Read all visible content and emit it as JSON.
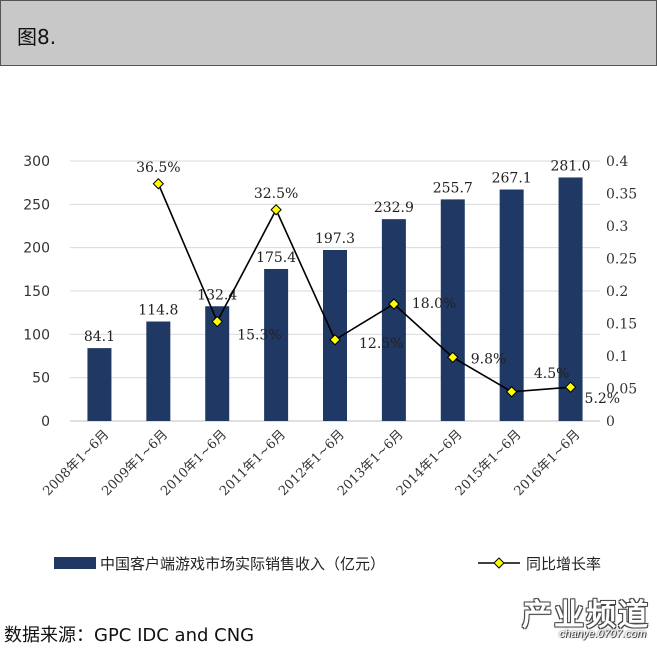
{
  "header": {
    "title": "图8."
  },
  "chart_data": {
    "type": "bar",
    "categories": [
      "2008年1~6月",
      "2009年1~6月",
      "2010年1~6月",
      "2011年1~6月",
      "2012年1~6月",
      "2013年1~6月",
      "2014年1~6月",
      "2015年1~6月",
      "2016年1~6月"
    ],
    "series": [
      {
        "name": "中国客户端游戏市场实际销售收入（亿元）",
        "type": "bar",
        "axis": "left",
        "color": "#1f3864",
        "values": [
          84.1,
          114.8,
          132.4,
          175.4,
          197.3,
          232.9,
          255.7,
          267.1,
          281.0
        ],
        "labels": [
          "84.1",
          "114.8",
          "132.4",
          "175.4",
          "197.3",
          "232.9",
          "255.7",
          "267.1",
          "281.0"
        ]
      },
      {
        "name": "同比增长率",
        "type": "line",
        "axis": "right",
        "color": "#000000",
        "marker_color": "#ffff00",
        "values": [
          null,
          0.365,
          0.153,
          0.325,
          0.125,
          0.18,
          0.098,
          0.045,
          0.052
        ],
        "labels": [
          null,
          "36.5%",
          "15.3%",
          "32.5%",
          "12.5%",
          "18.0%",
          "9.8%",
          "4.5%",
          "5.2%"
        ]
      }
    ],
    "y_left": {
      "min": 0,
      "max": 300,
      "ticks": [
        "0",
        "50",
        "100",
        "150",
        "200",
        "250",
        "300"
      ]
    },
    "y_right": {
      "min": 0,
      "max": 0.4,
      "ticks": [
        "0",
        "0.05",
        "0.1",
        "0.15",
        "0.2",
        "0.25",
        "0.3",
        "0.35",
        "0.4"
      ]
    },
    "grid": true,
    "legend": "bottom"
  },
  "source": "数据来源：GPC IDC and CNG",
  "watermark": {
    "main": "产业频道",
    "sub": "chanye.0707.com"
  }
}
